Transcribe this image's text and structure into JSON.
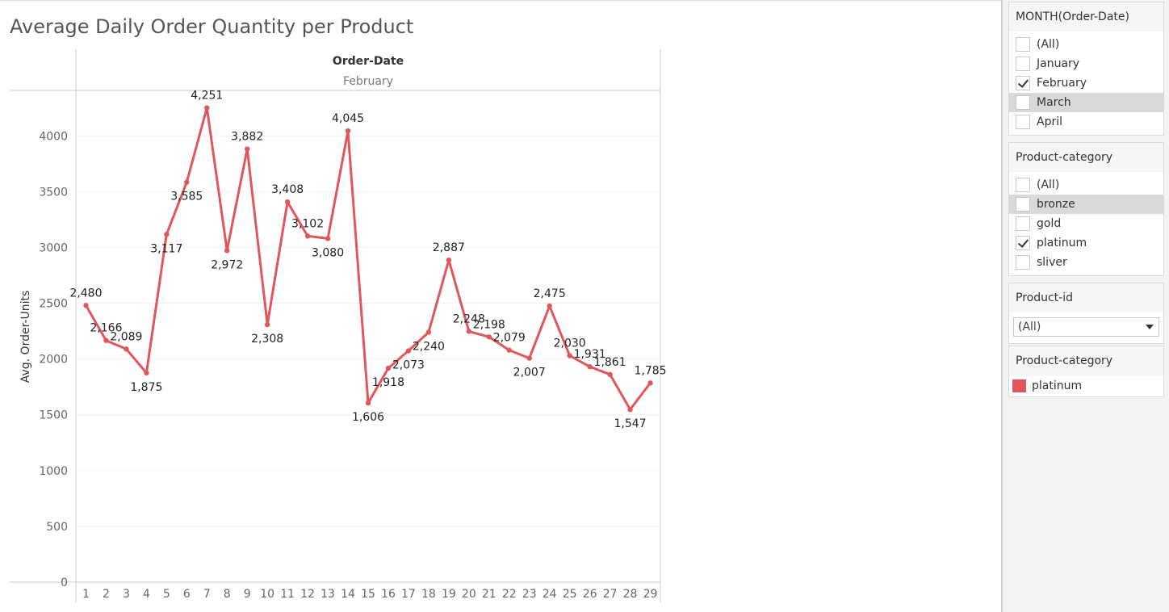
{
  "title": "Average Daily Order Quantity per Product",
  "accent_color": "#e15759",
  "chart_data": {
    "type": "line",
    "header": "Order-Date",
    "subheader": "February",
    "ylabel": "Avg. Order-Units",
    "xlabel": "",
    "ylim": [
      0,
      4400
    ],
    "yticks": [
      0,
      500,
      1000,
      1500,
      2000,
      2500,
      3000,
      3500,
      4000
    ],
    "grid": true,
    "x": [
      1,
      2,
      3,
      4,
      5,
      6,
      7,
      8,
      9,
      10,
      11,
      12,
      13,
      14,
      15,
      16,
      17,
      18,
      19,
      20,
      21,
      22,
      23,
      24,
      25,
      26,
      27,
      28,
      29
    ],
    "series": [
      {
        "name": "platinum",
        "color": "#e15759",
        "values": [
          2480,
          2166,
          2089,
          1875,
          3117,
          3585,
          4251,
          2972,
          3882,
          2308,
          3408,
          3102,
          3080,
          4045,
          1606,
          1918,
          2073,
          2240,
          2887,
          2248,
          2198,
          2079,
          2007,
          2475,
          2030,
          1931,
          1861,
          1547,
          1785
        ],
        "labels": [
          "2,480",
          "2,166",
          "2,089",
          "1,875",
          "3,117",
          "3,585",
          "4,251",
          "2,972",
          "3,882",
          "2,308",
          "3,408",
          "3,102",
          "3,080",
          "4,045",
          "1,606",
          "1,918",
          "2,073",
          "2,240",
          "2,887",
          "2,248",
          "2,198",
          "2,079",
          "2,007",
          "2,475",
          "2,030",
          "1,931",
          "1,861",
          "1,547",
          "1,785"
        ]
      }
    ]
  },
  "filters": {
    "month": {
      "title": "MONTH(Order-Date)",
      "items": [
        {
          "label": "(All)",
          "checked": false
        },
        {
          "label": "January",
          "checked": false
        },
        {
          "label": "February",
          "checked": true
        },
        {
          "label": "March",
          "checked": false
        },
        {
          "label": "April",
          "checked": false
        }
      ]
    },
    "category": {
      "title": "Product-category",
      "items": [
        {
          "label": "(All)",
          "checked": false
        },
        {
          "label": "bronze",
          "checked": false
        },
        {
          "label": "gold",
          "checked": false
        },
        {
          "label": "platinum",
          "checked": true
        },
        {
          "label": "sliver",
          "checked": false
        }
      ]
    },
    "product_id": {
      "title": "Product-id",
      "value": "(All)"
    }
  },
  "legend": {
    "title": "Product-category",
    "items": [
      {
        "label": "platinum",
        "color": "#e15759"
      }
    ]
  }
}
